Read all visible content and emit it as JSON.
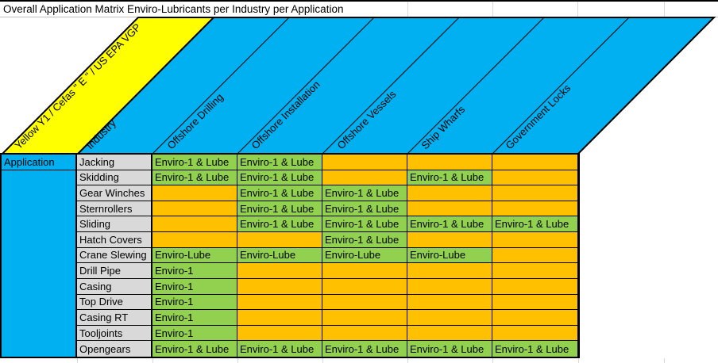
{
  "title": "Overall Application Matrix Enviro-Lubricants per Industry per Application",
  "header": {
    "certification": "Yellow Y1 / Cefas \" E \" / US EPA VGP",
    "industry_label": "Industry",
    "columns": [
      "Offshore Drilling",
      "Offshore Installation",
      "Offshore Vessels",
      "Ship Wharfs",
      "Government Locks"
    ]
  },
  "left_axis_label": "Application",
  "rows": [
    {
      "application": "Jacking",
      "cells": [
        "Enviro-1 & Lube",
        "Enviro-1 & Lube",
        "",
        "",
        ""
      ]
    },
    {
      "application": "Skidding",
      "cells": [
        "Enviro-1 & Lube",
        "Enviro-1 & Lube",
        "",
        "Enviro-1 & Lube",
        ""
      ]
    },
    {
      "application": "Gear Winches",
      "cells": [
        "",
        "Enviro-1 & Lube",
        "Enviro-1 & Lube",
        "",
        ""
      ]
    },
    {
      "application": "Sternrollers",
      "cells": [
        "",
        "Enviro-1 & Lube",
        "Enviro-1 & Lube",
        "",
        ""
      ]
    },
    {
      "application": "Sliding",
      "cells": [
        "",
        "Enviro-1 & Lube",
        "Enviro-1 & Lube",
        "Enviro-1 & Lube",
        "Enviro-1 & Lube"
      ]
    },
    {
      "application": "Hatch Covers",
      "cells": [
        "",
        "",
        "Enviro-1 & Lube",
        "",
        ""
      ]
    },
    {
      "application": "Crane Slewing",
      "cells": [
        "Enviro-Lube",
        "Enviro-Lube",
        "Enviro-Lube",
        "Enviro-Lube",
        ""
      ]
    },
    {
      "application": "Drill Pipe",
      "cells": [
        "Enviro-1",
        "",
        "",
        "",
        ""
      ]
    },
    {
      "application": "Casing",
      "cells": [
        "Enviro-1",
        "",
        "",
        "",
        ""
      ]
    },
    {
      "application": "Top Drive",
      "cells": [
        "Enviro-1",
        "",
        "",
        "",
        ""
      ]
    },
    {
      "application": "Casing RT",
      "cells": [
        "Enviro-1",
        "",
        "",
        "",
        ""
      ]
    },
    {
      "application": "Tooljoints",
      "cells": [
        "Enviro-1",
        "",
        "",
        "",
        ""
      ]
    },
    {
      "application": "Opengears",
      "cells": [
        "Enviro-1 & Lube",
        "Enviro-1 & Lube",
        "Enviro-1 & Lube",
        "Enviro-1 & Lube",
        "Enviro-1 & Lube"
      ]
    }
  ],
  "colors": {
    "band_yellow": "#FFFF00",
    "header_cyan": "#00B0F0",
    "filled_cell": "#92D050",
    "empty_cell": "#FFC000",
    "label_gray": "#D9D9D9",
    "grid_line": "#000000"
  }
}
